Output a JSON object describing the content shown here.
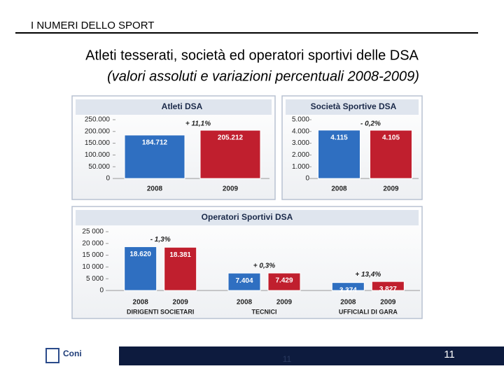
{
  "slide": {
    "header": "I NUMERI DELLO SPORT",
    "title": "Atleti tesserati, società ed operatori sportivi delle DSA",
    "subtitle": "(valori assoluti e variazioni percentuali 2008-2009)",
    "logo": "Coni",
    "page_number": "11"
  },
  "chart_data": [
    {
      "type": "bar",
      "title": "Atleti DSA",
      "categories": [
        "2008",
        "2009"
      ],
      "values": [
        184712,
        205212
      ],
      "value_labels": [
        "184.712",
        "205.212"
      ],
      "colors": [
        "#2f6fc1",
        "#c01f2e"
      ],
      "ylim": [
        0,
        250000
      ],
      "yticks": [
        0,
        {
          "value": 50000,
          "label": "50.000"
        },
        {
          "value": 100000,
          "label": "100.000"
        },
        {
          "value": 150000,
          "label": "150.000"
        },
        {
          "value": 200000,
          "label": "200.000"
        },
        {
          "value": 250000,
          "label": "250.000"
        }
      ],
      "annotations": [
        "+ 11,1%"
      ]
    },
    {
      "type": "bar",
      "title": "Società Sportive DSA",
      "categories": [
        "2008",
        "2009"
      ],
      "values": [
        4115,
        4105
      ],
      "value_labels": [
        "4.115",
        "4.105"
      ],
      "colors": [
        "#2f6fc1",
        "#c01f2e"
      ],
      "ylim": [
        0,
        5000
      ],
      "yticks": [
        0,
        {
          "value": 1000,
          "label": "1.000"
        },
        {
          "value": 2000,
          "label": "2.000"
        },
        {
          "value": 3000,
          "label": "3.000"
        },
        {
          "value": 4000,
          "label": "4.000"
        },
        {
          "value": 5000,
          "label": "5.000"
        }
      ],
      "annotations": [
        "- 0,2%"
      ]
    },
    {
      "type": "bar",
      "title": "Operatori Sportivi DSA",
      "categories": [
        "DIRIGENTI SOCIETARI",
        "TECNICI",
        "UFFICIALI DI GARA"
      ],
      "series": [
        {
          "name": "2008",
          "color": "#2f6fc1",
          "values": [
            18620,
            7404,
            3374
          ],
          "value_labels": [
            "18.620",
            "7.404",
            "3.374"
          ]
        },
        {
          "name": "2009",
          "color": "#c01f2e",
          "values": [
            18381,
            7429,
            3827
          ],
          "value_labels": [
            "18.381",
            "7.429",
            "3.827"
          ]
        }
      ],
      "ylim": [
        0,
        25000
      ],
      "yticks": [
        0,
        {
          "value": 5000,
          "label": "5 000"
        },
        {
          "value": 10000,
          "label": "10 000"
        },
        {
          "value": 15000,
          "label": "15 000"
        },
        {
          "value": 20000,
          "label": "20 000"
        },
        {
          "value": 25000,
          "label": "25 000"
        }
      ],
      "annotations": [
        "- 1,3%",
        "+ 0,3%",
        "+ 13,4%"
      ]
    }
  ]
}
